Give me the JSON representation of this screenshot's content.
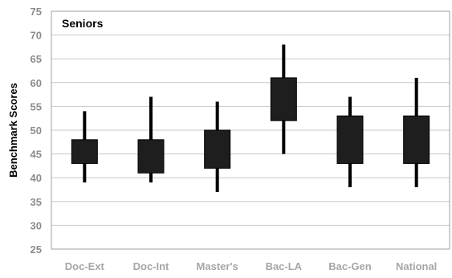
{
  "chart_data": {
    "type": "box",
    "title": "Seniors",
    "ylabel": "Benchmark Scores",
    "xlabel": "",
    "ylim": [
      25,
      75
    ],
    "yticks": [
      25,
      30,
      35,
      40,
      45,
      50,
      55,
      60,
      65,
      70,
      75
    ],
    "grid": true,
    "categories": [
      "Doc-Ext",
      "Doc-Int",
      "Master's",
      "Bac-LA",
      "Bac-Gen",
      "National"
    ],
    "boxes": [
      {
        "category": "Doc-Ext",
        "low": 39,
        "q1": 43,
        "q3": 48,
        "high": 54
      },
      {
        "category": "Doc-Int",
        "low": 39,
        "q1": 41,
        "q3": 48,
        "high": 57
      },
      {
        "category": "Master's",
        "low": 37,
        "q1": 42,
        "q3": 50,
        "high": 56
      },
      {
        "category": "Bac-LA",
        "low": 45,
        "q1": 52,
        "q3": 61,
        "high": 68
      },
      {
        "category": "Bac-Gen",
        "low": 38,
        "q1": 43,
        "q3": 53,
        "high": 57
      },
      {
        "category": "National",
        "low": 38,
        "q1": 43,
        "q3": 53,
        "high": 61
      }
    ],
    "colors": {
      "box": "#1e1e1e",
      "whisker": "#000000",
      "grid": "#c8c8c8",
      "tick_text": "#8c8c8c",
      "category_text": "#a6a6a6"
    }
  }
}
